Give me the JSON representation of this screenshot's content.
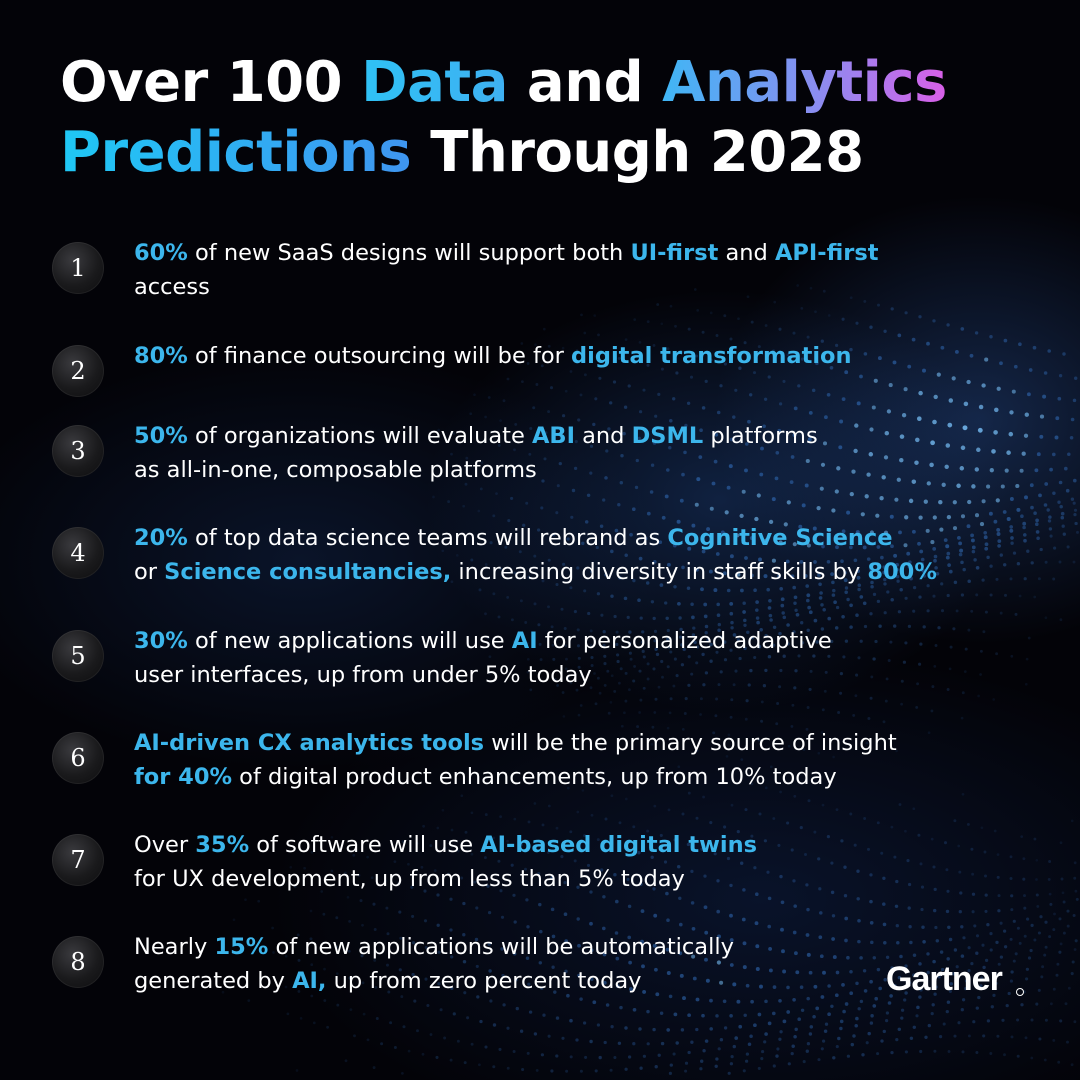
{
  "title": {
    "part1": "Over 100 ",
    "part2": "Data",
    "part3": " and ",
    "part4": "Analytics",
    "part5": "Predictions",
    "part6": " Through 2028"
  },
  "predictions": [
    {
      "number": "1",
      "segments": [
        {
          "text": "60%",
          "hl": true
        },
        {
          "text": " of new SaaS designs will support both ",
          "hl": false
        },
        {
          "text": "UI-first",
          "hl": true
        },
        {
          "text": " and ",
          "hl": false
        },
        {
          "text": "API-first",
          "hl": true
        },
        {
          "text": "\naccess",
          "hl": false
        }
      ]
    },
    {
      "number": "2",
      "segments": [
        {
          "text": "80%",
          "hl": true
        },
        {
          "text": " of finance outsourcing will be for ",
          "hl": false
        },
        {
          "text": "digital transformation",
          "hl": true
        }
      ]
    },
    {
      "number": "3",
      "segments": [
        {
          "text": "50%",
          "hl": true
        },
        {
          "text": " of organizations will evaluate ",
          "hl": false
        },
        {
          "text": "ABI",
          "hl": true
        },
        {
          "text": " and ",
          "hl": false
        },
        {
          "text": "DSML",
          "hl": true
        },
        {
          "text": " platforms\nas all-in-one, composable platforms",
          "hl": false
        }
      ]
    },
    {
      "number": "4",
      "segments": [
        {
          "text": "20%",
          "hl": true
        },
        {
          "text": " of top data science teams will rebrand as ",
          "hl": false
        },
        {
          "text": "Cognitive Science",
          "hl": true
        },
        {
          "text": "\nor ",
          "hl": false
        },
        {
          "text": "Science consultancies,",
          "hl": true
        },
        {
          "text": " increasing diversity in staff skills by ",
          "hl": false
        },
        {
          "text": "800%",
          "hl": true
        }
      ]
    },
    {
      "number": "5",
      "segments": [
        {
          "text": "30%",
          "hl": true
        },
        {
          "text": " of new applications will use ",
          "hl": false
        },
        {
          "text": "AI",
          "hl": true
        },
        {
          "text": " for personalized adaptive\nuser interfaces, up from under 5% today",
          "hl": false
        }
      ]
    },
    {
      "number": "6",
      "segments": [
        {
          "text": "AI-driven CX analytics tools",
          "hl": true
        },
        {
          "text": " will be the primary source of insight\n",
          "hl": false
        },
        {
          "text": "for 40%",
          "hl": true
        },
        {
          "text": " of digital product enhancements, up from 10% today",
          "hl": false
        }
      ]
    },
    {
      "number": "7",
      "segments": [
        {
          "text": "Over ",
          "hl": false
        },
        {
          "text": "35%",
          "hl": true
        },
        {
          "text": " of software will use ",
          "hl": false
        },
        {
          "text": "AI-based digital twins",
          "hl": true
        },
        {
          "text": "\nfor UX development, up from less than 5% today",
          "hl": false
        }
      ]
    },
    {
      "number": "8",
      "segments": [
        {
          "text": "Nearly ",
          "hl": false
        },
        {
          "text": "15%",
          "hl": true
        },
        {
          "text": " of new applications will be automatically\ngenerated by ",
          "hl": false
        },
        {
          "text": "AI,",
          "hl": true
        },
        {
          "text": " up from zero percent today",
          "hl": false
        }
      ]
    }
  ],
  "brand": {
    "logo_text": "Gartner"
  },
  "colors": {
    "highlight": "#3cb6ec",
    "background": "#030308",
    "text": "#ffffff"
  }
}
